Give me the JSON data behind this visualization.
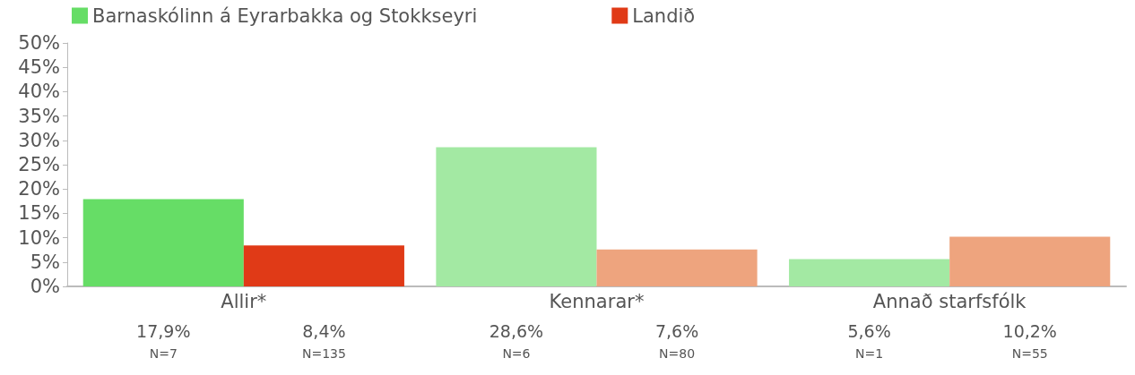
{
  "chart_data": {
    "type": "bar",
    "categories": [
      "Allir*",
      "Kennarar*",
      "Annað starfsfólk"
    ],
    "series": [
      {
        "name": "Barnaskólinn á Eyrarbakka og Stokkseyri",
        "color": "#66dd66",
        "colors": [
          "#66dd66",
          "#a3e9a3",
          "#a3e9a3"
        ],
        "values": [
          17.9,
          28.6,
          5.6
        ],
        "value_labels": [
          "17,9%\nN=7",
          "28,6%\nN=6",
          "5,6%\nN=1"
        ]
      },
      {
        "name": "Landið",
        "color": "#e03a17",
        "colors": [
          "#e03a17",
          "#eea47e",
          "#eea47e"
        ],
        "values": [
          8.4,
          7.6,
          10.2
        ],
        "value_labels": [
          "8,4%\nN=135",
          "7,6%\nN=80",
          "10,2%\nN=55"
        ]
      }
    ],
    "ylim": [
      0,
      50
    ],
    "yticks": [
      {
        "value": 0,
        "label": "0%"
      },
      {
        "value": 5,
        "label": "5%"
      },
      {
        "value": 10,
        "label": "10%"
      },
      {
        "value": 15,
        "label": "15%"
      },
      {
        "value": 20,
        "label": "20%"
      },
      {
        "value": 25,
        "label": "25%"
      },
      {
        "value": 30,
        "label": "30%"
      },
      {
        "value": 35,
        "label": "35%"
      },
      {
        "value": 40,
        "label": "40%"
      },
      {
        "value": 45,
        "label": "45%"
      },
      {
        "value": 50,
        "label": "50%"
      }
    ],
    "grid": false,
    "legend": "top left"
  }
}
